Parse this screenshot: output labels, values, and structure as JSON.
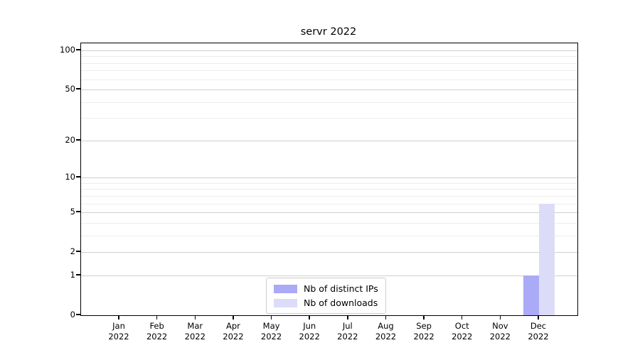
{
  "title": "servr 2022",
  "colors": {
    "distinct_ips": "#aaaaf7",
    "downloads": "#dcdcf9",
    "grid_major": "#cfcfcf",
    "grid_minor": "#ededed",
    "axis": "#000000",
    "legend_border": "#cccccc",
    "background": "#ffffff"
  },
  "legend": {
    "items": [
      {
        "label": "Nb of distinct IPs",
        "color": "#aaaaf7"
      },
      {
        "label": "Nb of downloads",
        "color": "#dcdcf9"
      }
    ]
  },
  "chart_data": {
    "type": "bar",
    "title": "servr 2022",
    "categories": [
      "Jan",
      "Feb",
      "Mar",
      "Apr",
      "May",
      "Jun",
      "Jul",
      "Aug",
      "Sep",
      "Oct",
      "Nov",
      "Dec"
    ],
    "category_year": "2022",
    "series": [
      {
        "name": "Nb of distinct IPs",
        "color": "#aaaaf7",
        "values": [
          0,
          0,
          0,
          0,
          0,
          0,
          0,
          0,
          0,
          0,
          0,
          1
        ]
      },
      {
        "name": "Nb of downloads",
        "color": "#dcdcf9",
        "values": [
          0,
          0,
          0,
          0,
          0,
          0,
          0,
          0,
          0,
          0,
          0,
          6
        ]
      }
    ],
    "xlabel": "",
    "ylabel": "",
    "yscale": "log1p",
    "yticks": [
      0,
      1,
      2,
      5,
      10,
      20,
      50,
      100
    ],
    "yticks_minor": [
      3,
      4,
      6,
      7,
      8,
      9,
      30,
      40,
      60,
      70,
      80,
      90
    ],
    "ylim": [
      0,
      113
    ],
    "grid": true,
    "legend_position": "lower center"
  }
}
